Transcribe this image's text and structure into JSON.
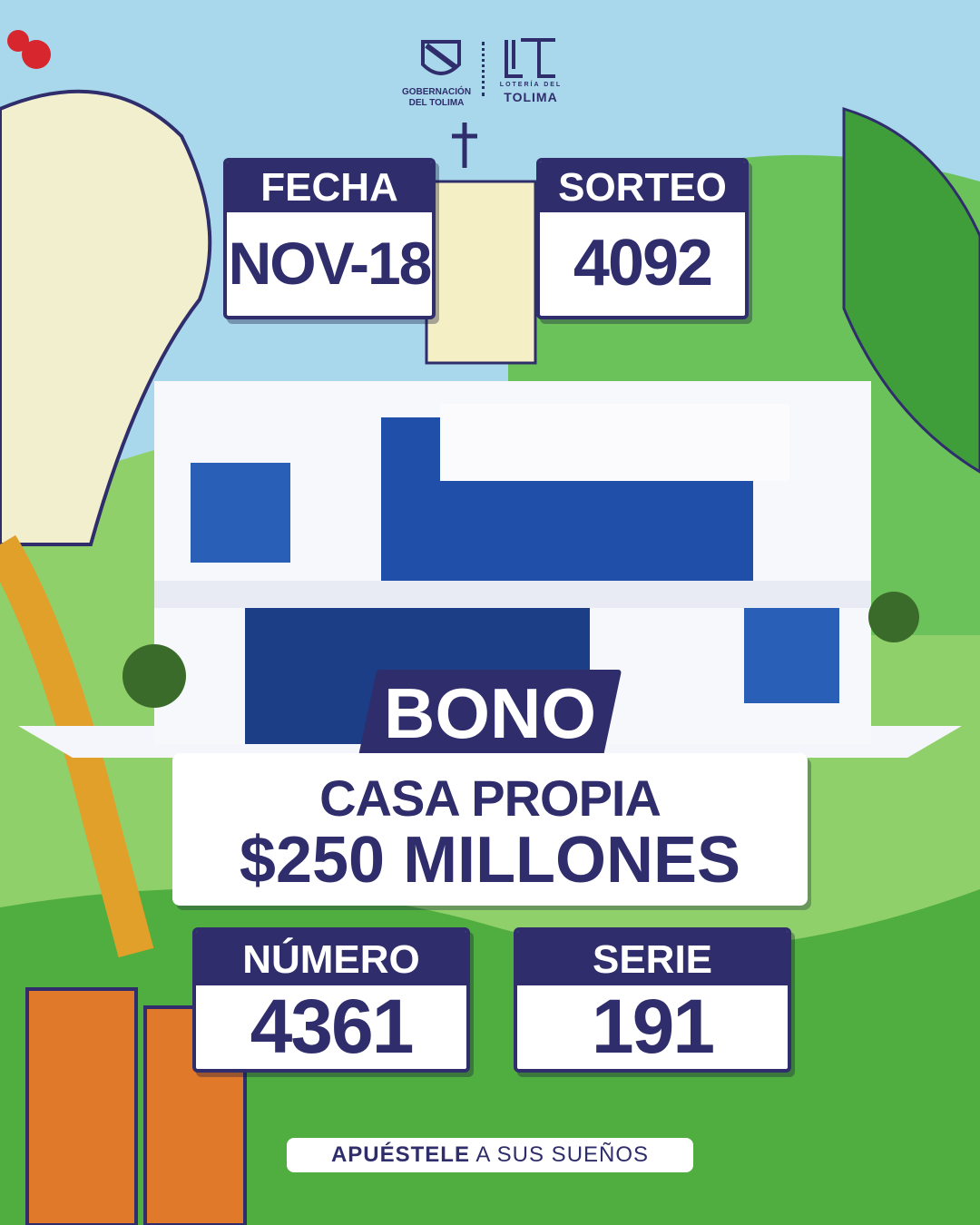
{
  "logos": {
    "gobernacion": "GOBERNACIÓN DEL TOLIMA",
    "loteria_small": "LOTERÍA DEL",
    "loteria_big": "TOLIMA"
  },
  "fecha": {
    "label": "FECHA",
    "value": "NOV-18"
  },
  "sorteo": {
    "label": "SORTEO",
    "value": "4092"
  },
  "bono": "BONO",
  "prize": {
    "line1": "CASA PROPIA",
    "line2": "$250 MILLONES"
  },
  "numero": {
    "label": "NÚMERO",
    "value": "4361"
  },
  "serie": {
    "label": "SERIE",
    "value": "191"
  },
  "tagline": {
    "bold": "APUÉSTELE",
    "rest": " A SUS SUEÑOS"
  },
  "colors": {
    "navy": "#2f2d6b",
    "sky": "#a9d8ec",
    "green": "#5cb84a"
  }
}
